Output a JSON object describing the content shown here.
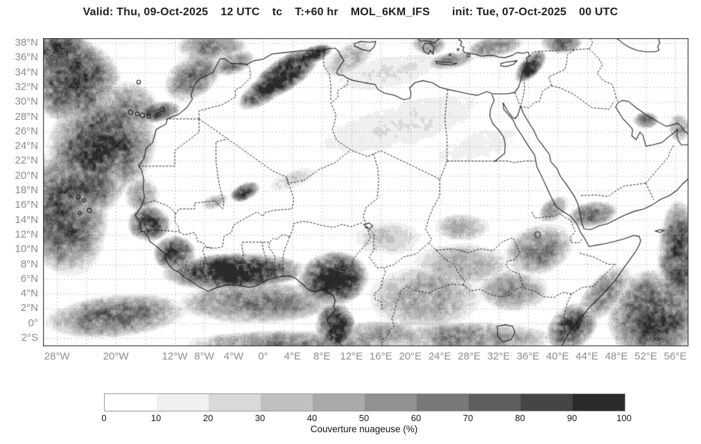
{
  "title": {
    "segments": [
      "Valid: Thu, 09-Oct-2025",
      "12 UTC",
      "tc",
      "T:+60 hr",
      "MOL_6KM_IFS",
      "init: Tue, 07-Oct-2025",
      "00 UTC"
    ]
  },
  "map": {
    "extent": {
      "lon_min": -29.9,
      "lon_max": 57.8,
      "lat_min": -3.12,
      "lat_max": 38.66
    },
    "grid": {
      "lat_step_deg": 2,
      "lon_step_deg": 4,
      "style": "dashed"
    },
    "lat_ticks": [
      {
        "label": "38°N",
        "value": 38
      },
      {
        "label": "36°N",
        "value": 36
      },
      {
        "label": "34°N",
        "value": 34
      },
      {
        "label": "32°N",
        "value": 32
      },
      {
        "label": "30°N",
        "value": 30
      },
      {
        "label": "28°N",
        "value": 28
      },
      {
        "label": "26°N",
        "value": 26
      },
      {
        "label": "24°N",
        "value": 24
      },
      {
        "label": "22°N",
        "value": 22
      },
      {
        "label": "20°N",
        "value": 20
      },
      {
        "label": "18°N",
        "value": 18
      },
      {
        "label": "16°N",
        "value": 16
      },
      {
        "label": "14°N",
        "value": 14
      },
      {
        "label": "12°N",
        "value": 12
      },
      {
        "label": "10°N",
        "value": 10
      },
      {
        "label": "8°N",
        "value": 8
      },
      {
        "label": "6°N",
        "value": 6
      },
      {
        "label": "4°N",
        "value": 4
      },
      {
        "label": "2°N",
        "value": 2
      },
      {
        "label": "0°",
        "value": 0
      },
      {
        "label": "2°S",
        "value": -2
      }
    ],
    "lon_ticks": [
      {
        "label": "28°W",
        "value": -28
      },
      {
        "label": "20°W",
        "value": -20
      },
      {
        "label": "12°W",
        "value": -12
      },
      {
        "label": "8°W",
        "value": -8
      },
      {
        "label": "4°W",
        "value": -4
      },
      {
        "label": "0°",
        "value": 0
      },
      {
        "label": "4°E",
        "value": 4
      },
      {
        "label": "8°E",
        "value": 8
      },
      {
        "label": "12°E",
        "value": 12
      },
      {
        "label": "16°E",
        "value": 16
      },
      {
        "label": "20°E",
        "value": 20
      },
      {
        "label": "24°E",
        "value": 24
      },
      {
        "label": "28°E",
        "value": 28
      },
      {
        "label": "32°E",
        "value": 32
      },
      {
        "label": "36°E",
        "value": 36
      },
      {
        "label": "40°E",
        "value": 40
      },
      {
        "label": "44°E",
        "value": 44
      },
      {
        "label": "48°E",
        "value": 48
      },
      {
        "label": "52°E",
        "value": 52
      },
      {
        "label": "56°E",
        "value": 56
      }
    ],
    "cloud_regions": [
      [
        -28,
        37,
        5,
        3,
        0,
        0.8
      ],
      [
        -26,
        33,
        7,
        6,
        -20,
        0.85
      ],
      [
        -22,
        24,
        8,
        7,
        30,
        0.8
      ],
      [
        -27,
        15,
        6,
        9,
        10,
        0.75
      ],
      [
        -19,
        29,
        5,
        4,
        0,
        0.6
      ],
      [
        -24,
        19,
        6,
        5,
        30,
        0.7
      ],
      [
        -9.5,
        33.5,
        4.5,
        3,
        38,
        0.6
      ],
      [
        -14.5,
        28.6,
        3.5,
        1.4,
        10,
        0.75
      ],
      [
        -4,
        35.3,
        3,
        1.6,
        20,
        0.6
      ],
      [
        -7,
        37.5,
        5,
        2,
        0,
        0.6
      ],
      [
        3,
        33.8,
        5.5,
        2.3,
        34,
        1.0
      ],
      [
        6.8,
        36.4,
        2.8,
        1.2,
        20,
        0.95
      ],
      [
        0,
        31.5,
        4,
        1.8,
        34,
        0.8
      ],
      [
        11.5,
        35.8,
        4,
        2,
        30,
        0.4
      ],
      [
        17,
        34,
        8,
        2.5,
        12,
        0.22
      ],
      [
        19,
        27,
        13,
        3.5,
        15,
        0.2
      ],
      [
        29,
        24,
        8,
        2.5,
        15,
        0.14
      ],
      [
        4,
        19.5,
        3.5,
        1.3,
        20,
        0.3
      ],
      [
        -2.5,
        17.8,
        2.2,
        1.2,
        25,
        0.85
      ],
      [
        -6.5,
        16.5,
        2,
        1,
        20,
        0.45
      ],
      [
        -15.5,
        13.5,
        3,
        2.5,
        0,
        0.95
      ],
      [
        -16.5,
        17.5,
        2.5,
        2.5,
        0,
        0.5
      ],
      [
        -12,
        9.5,
        3,
        2.5,
        0,
        0.85
      ],
      [
        -4,
        7,
        10,
        2.6,
        2,
        1.0
      ],
      [
        9.5,
        6,
        5,
        3.8,
        10,
        1.0
      ],
      [
        9.8,
        -0.5,
        2.8,
        3.5,
        0,
        0.95
      ],
      [
        -1,
        2.8,
        11,
        3,
        0,
        0.6
      ],
      [
        -20,
        1,
        10,
        3,
        5,
        0.65
      ],
      [
        5,
        -2.8,
        16,
        2,
        0,
        0.6
      ],
      [
        16,
        -1.5,
        6,
        2,
        0,
        0.5
      ],
      [
        22,
        3.5,
        8,
        4.5,
        0,
        0.48
      ],
      [
        27,
        8,
        7,
        3,
        0,
        0.42
      ],
      [
        34,
        4.5,
        5,
        3,
        0,
        0.5
      ],
      [
        28,
        -2,
        12,
        2.3,
        0,
        0.55
      ],
      [
        27,
        13,
        4,
        2,
        0,
        0.4
      ],
      [
        17,
        11.5,
        5,
        2.5,
        0,
        0.3
      ],
      [
        37.5,
        10,
        5,
        3.5,
        20,
        0.6
      ],
      [
        39.5,
        15.5,
        2.5,
        1.5,
        40,
        0.5
      ],
      [
        44.8,
        14.8,
        3.5,
        1.8,
        10,
        0.65
      ],
      [
        42,
        -0.5,
        4,
        3,
        40,
        0.8
      ],
      [
        46.5,
        4,
        5,
        2.5,
        45,
        0.6
      ],
      [
        53,
        1,
        6.5,
        6.5,
        0,
        0.8
      ],
      [
        56.5,
        9,
        3,
        8,
        0,
        0.75
      ],
      [
        36.3,
        34.8,
        2.8,
        1.4,
        45,
        0.9
      ],
      [
        31.5,
        37.5,
        4,
        1.5,
        10,
        0.55
      ],
      [
        25.5,
        35.6,
        3.5,
        1.2,
        10,
        0.5
      ],
      [
        22.5,
        37.8,
        2.5,
        1.5,
        0,
        0.5
      ],
      [
        40.5,
        38,
        3,
        1.5,
        0,
        0.6
      ],
      [
        52,
        27.5,
        1.8,
        1.2,
        0,
        0.6
      ],
      [
        56.5,
        26.5,
        1.5,
        2,
        0,
        0.5
      ]
    ]
  },
  "colorbar": {
    "ticks": [
      "0",
      "10",
      "20",
      "30",
      "40",
      "50",
      "60",
      "70",
      "80",
      "90",
      "100"
    ],
    "colors": [
      "#ffffff",
      "#f0f0f0",
      "#d9d9d9",
      "#c0c0c0",
      "#a9a9a9",
      "#919191",
      "#787878",
      "#5e5e5e",
      "#454545",
      "#2b2b2b"
    ],
    "caption": "Couverture nuageuse (%)"
  }
}
